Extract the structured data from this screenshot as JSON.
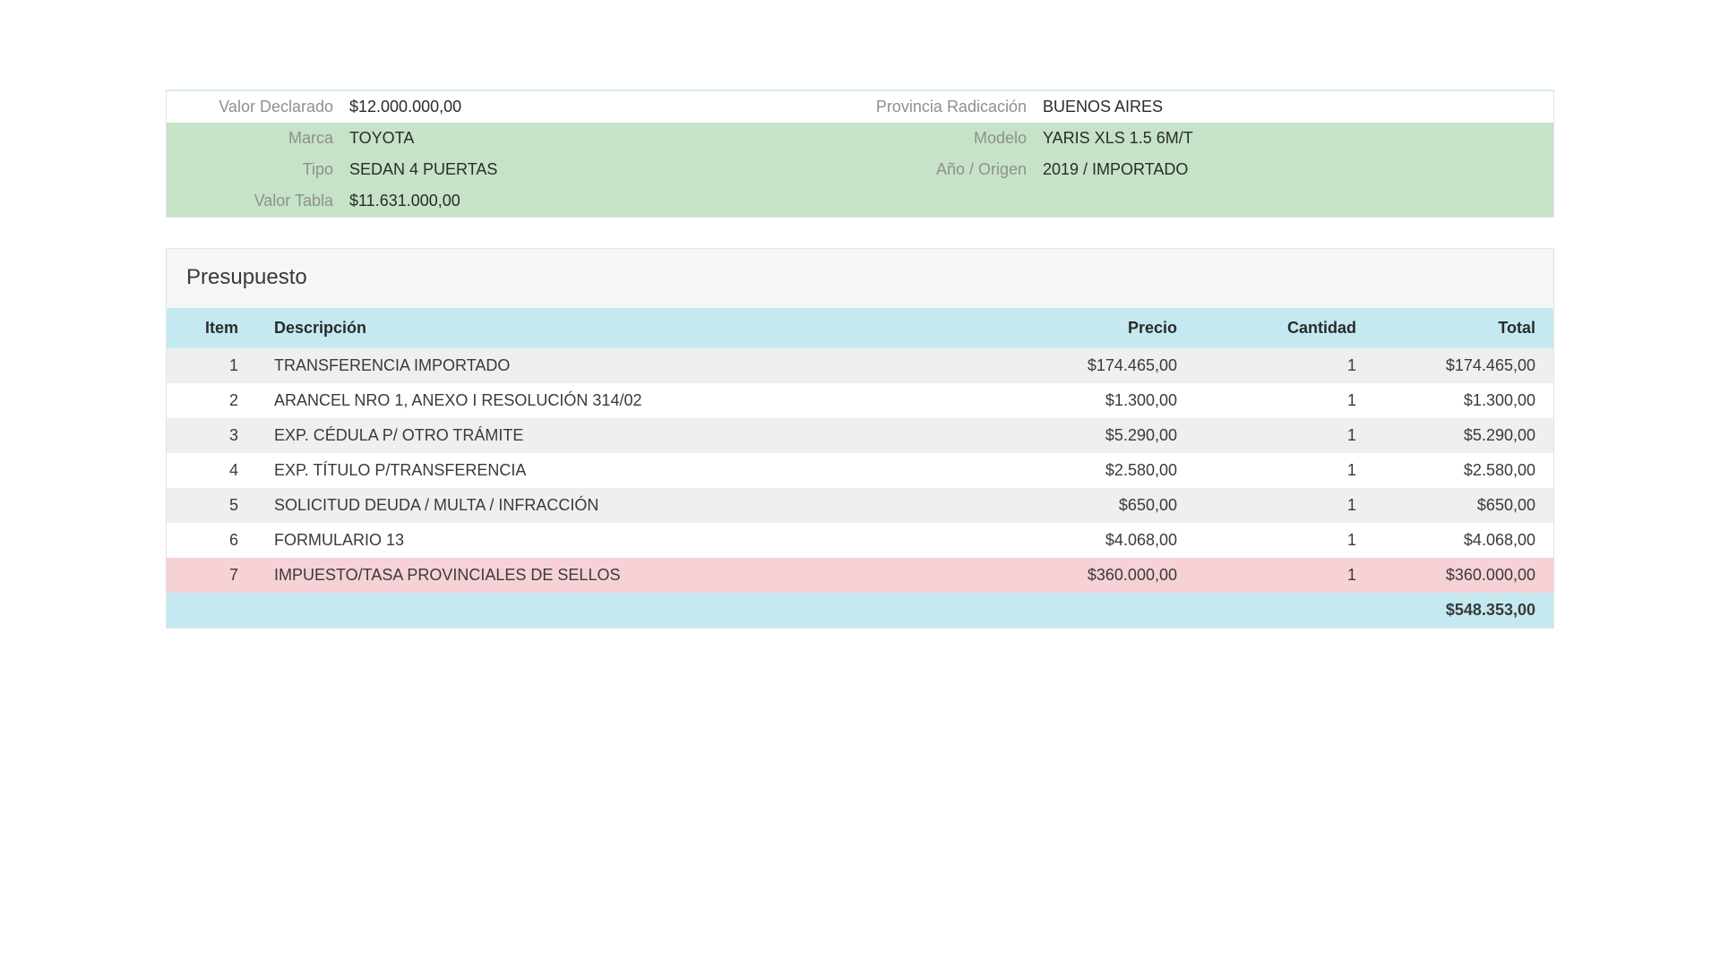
{
  "colors": {
    "row_green_bg": "#c6e3c7",
    "header_blue_bg": "#c5e9f1",
    "zebra_odd_bg": "#efefef",
    "zebra_even_bg": "#ffffff",
    "row_pink_bg": "#f6d2d7"
  },
  "details": {
    "rows": [
      {
        "highlight": false,
        "left": {
          "label": "Valor Declarado",
          "value": "$12.000.000,00"
        },
        "right": {
          "label": "Provincia Radicación",
          "value": "BUENOS AIRES"
        }
      },
      {
        "highlight": true,
        "left": {
          "label": "Marca",
          "value": "TOYOTA"
        },
        "right": {
          "label": "Modelo",
          "value": "YARIS XLS 1.5 6M/T"
        }
      },
      {
        "highlight": true,
        "left": {
          "label": "Tipo",
          "value": "SEDAN 4 PUERTAS"
        },
        "right": {
          "label": "Año / Origen",
          "value": "2019 / IMPORTADO"
        }
      },
      {
        "highlight": true,
        "left": {
          "label": "Valor Tabla",
          "value": "$11.631.000,00"
        },
        "right": {
          "label": "",
          "value": ""
        }
      }
    ]
  },
  "budget": {
    "title": "Presupuesto",
    "columns": {
      "item": "Item",
      "desc": "Descripción",
      "price": "Precio",
      "qty": "Cantidad",
      "total": "Total"
    },
    "rows": [
      {
        "item": "1",
        "desc": "TRANSFERENCIA IMPORTADO",
        "price": "$174.465,00",
        "qty": "1",
        "total": "$174.465,00",
        "variant": "odd"
      },
      {
        "item": "2",
        "desc": "ARANCEL NRO 1, ANEXO I RESOLUCIÓN 314/02",
        "price": "$1.300,00",
        "qty": "1",
        "total": "$1.300,00",
        "variant": "even"
      },
      {
        "item": "3",
        "desc": "EXP. CÉDULA P/ OTRO TRÁMITE",
        "price": "$5.290,00",
        "qty": "1",
        "total": "$5.290,00",
        "variant": "odd"
      },
      {
        "item": "4",
        "desc": "EXP. TÍTULO P/TRANSFERENCIA",
        "price": "$2.580,00",
        "qty": "1",
        "total": "$2.580,00",
        "variant": "even"
      },
      {
        "item": "5",
        "desc": "SOLICITUD DEUDA / MULTA / INFRACCIÓN",
        "price": "$650,00",
        "qty": "1",
        "total": "$650,00",
        "variant": "odd"
      },
      {
        "item": "6",
        "desc": "FORMULARIO 13",
        "price": "$4.068,00",
        "qty": "1",
        "total": "$4.068,00",
        "variant": "even"
      },
      {
        "item": "7",
        "desc": "IMPUESTO/TASA PROVINCIALES DE SELLOS",
        "price": "$360.000,00",
        "qty": "1",
        "total": "$360.000,00",
        "variant": "pink"
      }
    ],
    "grand_total": "$548.353,00"
  }
}
